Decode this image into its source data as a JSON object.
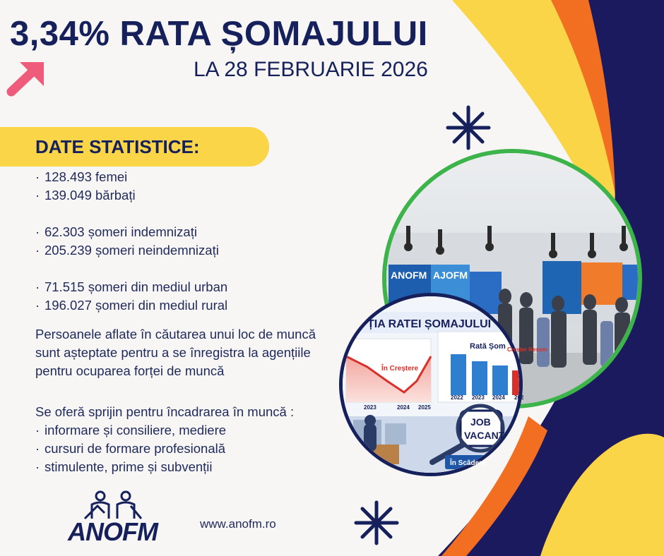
{
  "headline": {
    "title": "3,34% RATA ȘOMAJULUI",
    "date": "LA 28 FEBRUARIE 2026"
  },
  "section": {
    "heading": "DATE STATISTICE:"
  },
  "stats": [
    "128.493 femei",
    "139.049 bărbați",
    "62.303 șomeri indemnizați",
    "205.239 șomeri neindemnizați",
    "71.515 șomeri din mediul urban",
    "196.027 șomeri din mediul rural"
  ],
  "paragraph": [
    "Persoanele aflate în căutarea unui loc de muncă",
    "sunt așteptate pentru a se înregistra la agențiile",
    "pentru ocuparea forței de muncă"
  ],
  "support": {
    "lead": "Se oferă sprijin pentru încadrarea în muncă :",
    "items": [
      "informare și consiliere, mediere",
      "cursuri de formare profesională",
      "stimulente, prime și subvenții"
    ]
  },
  "footer": {
    "logo": "ANOFM",
    "url": "www.anofm.ro"
  },
  "photo_top": {
    "booth1": "ANOFM",
    "booth2": "AJOFM"
  },
  "photo_bottom": {
    "banner": "ȚIA RATEI ȘOMAJULUI",
    "chart_title": "Rată Șom",
    "rising_label": "În Creștere",
    "side_label": "Creșter Reșom",
    "falling_label": "În Scădere",
    "job_sign": [
      "JOB",
      "VACANT"
    ],
    "left_years": [
      "2023",
      "2024",
      "2025"
    ],
    "right_years": [
      "2022",
      "2023",
      "2024",
      "202"
    ]
  },
  "colors": {
    "navy": "#16215c",
    "yellow": "#fbd548",
    "orange": "#f26f22",
    "green": "#3cb44a",
    "arrow": "#ef5b7a"
  }
}
